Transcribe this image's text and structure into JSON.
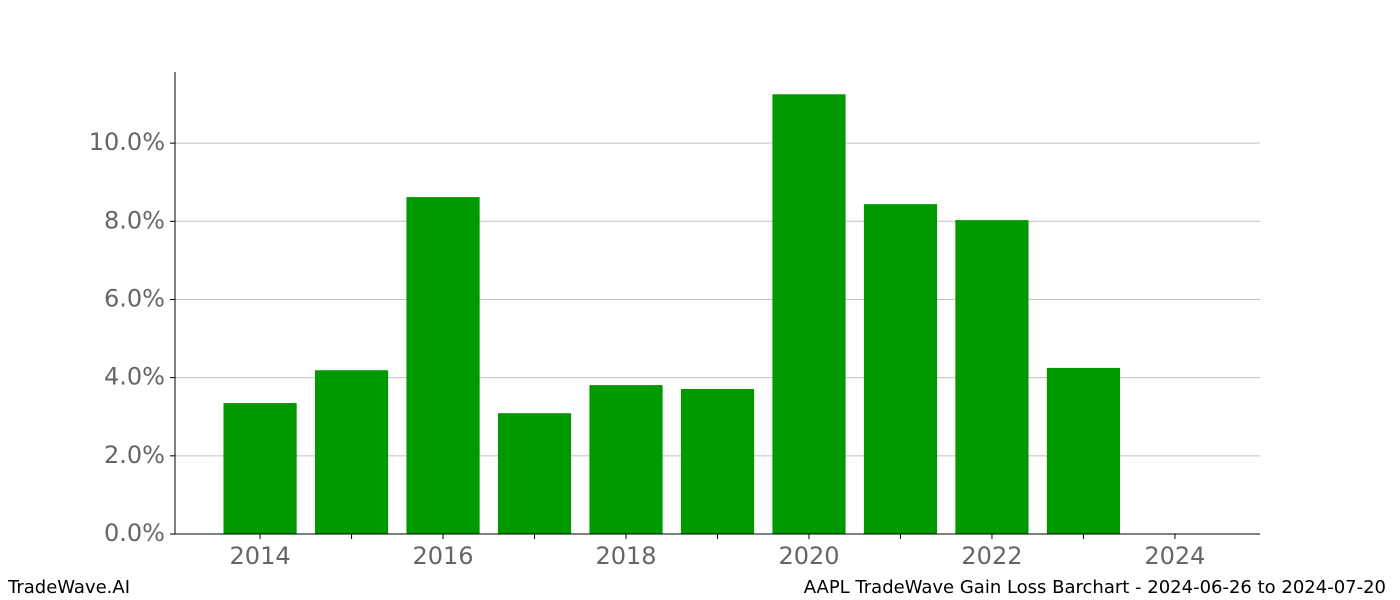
{
  "chart_data": {
    "type": "bar",
    "x": [
      2014,
      2015,
      2016,
      2017,
      2018,
      2019,
      2020,
      2021,
      2022,
      2023
    ],
    "values": [
      3.35,
      4.19,
      8.62,
      3.09,
      3.81,
      3.71,
      11.25,
      8.44,
      8.03,
      4.25
    ],
    "color": "#009900",
    "xlim": [
      2013.07,
      2024.93
    ],
    "xticks": [
      2014,
      2016,
      2018,
      2020,
      2022,
      2024
    ],
    "xminor_ticks": [
      2015,
      2017,
      2019,
      2021,
      2023
    ],
    "ylim": [
      0,
      11.82
    ],
    "yticks": [
      {
        "value": 0,
        "label": "0.0%"
      },
      {
        "value": 2,
        "label": "2.0%"
      },
      {
        "value": 4,
        "label": "4.0%"
      },
      {
        "value": 6,
        "label": "6.0%"
      },
      {
        "value": 8,
        "label": "8.0%"
      },
      {
        "value": 10,
        "label": "10.0%"
      }
    ],
    "grid": true,
    "footer_left": "TradeWave.AI",
    "footer_right": "AAPL TradeWave Gain Loss Barchart - 2024-06-26 to 2024-07-20"
  }
}
